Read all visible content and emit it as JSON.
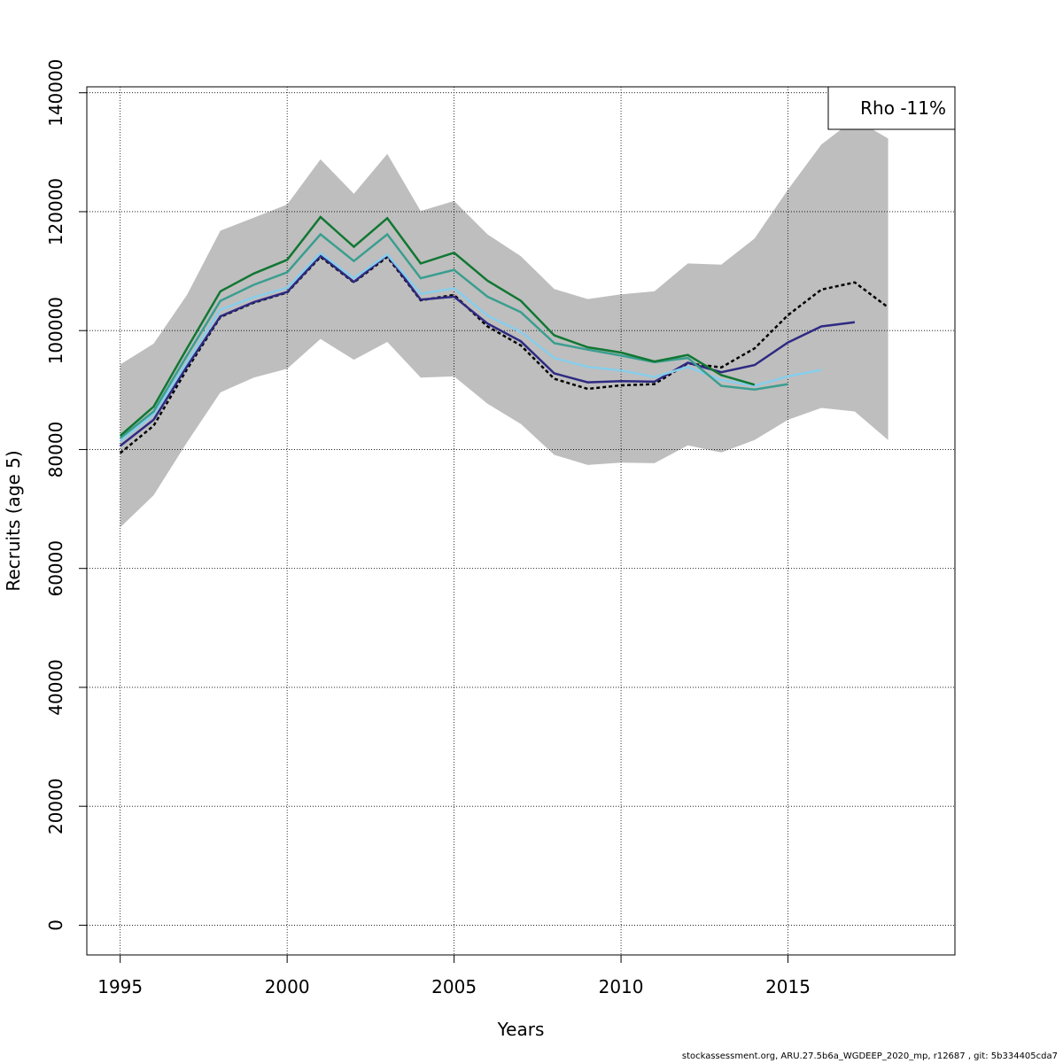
{
  "chart_data": {
    "type": "line",
    "xlabel": "Years",
    "ylabel": "Recruits (age 5)",
    "xlim": [
      1994,
      2020
    ],
    "ylim": [
      -5000,
      141000
    ],
    "x_ticks": [
      1995,
      2000,
      2005,
      2010,
      2015
    ],
    "y_ticks": [
      0,
      20000,
      40000,
      60000,
      80000,
      100000,
      120000,
      140000
    ],
    "grid": true,
    "legend": {
      "placement": "top-right",
      "text": "Rho -11%"
    },
    "band": {
      "color": "#bebebe",
      "x": [
        1995,
        1996,
        1997,
        1998,
        1999,
        2000,
        2001,
        2002,
        2003,
        2004,
        2005,
        2006,
        2007,
        2008,
        2009,
        2010,
        2011,
        2012,
        2013,
        2014,
        2015,
        2016,
        2017,
        2018
      ],
      "upper": [
        94300,
        97800,
        106000,
        116800,
        119000,
        121200,
        128800,
        123000,
        129700,
        120100,
        121800,
        116200,
        112500,
        107000,
        105300,
        106100,
        106600,
        111300,
        111100,
        115500,
        123700,
        131300,
        135600,
        132300
      ],
      "lower": [
        66900,
        72300,
        81200,
        89600,
        92100,
        93600,
        98600,
        95100,
        98100,
        92100,
        92300,
        87700,
        84300,
        79100,
        77400,
        77800,
        77700,
        80700,
        79500,
        81600,
        85000,
        87000,
        86400,
        81600
      ]
    },
    "series": [
      {
        "color": "#000000",
        "dashed": true,
        "x": [
          1995,
          1996,
          1997,
          1998,
          1999,
          2000,
          2001,
          2002,
          2003,
          2004,
          2005,
          2006,
          2007,
          2008,
          2009,
          2010,
          2011,
          2012,
          2013,
          2014,
          2015,
          2016,
          2017,
          2018
        ],
        "values": [
          79400,
          84000,
          93500,
          102300,
          104700,
          106400,
          112400,
          108100,
          112400,
          105100,
          106000,
          100700,
          97500,
          91900,
          90200,
          90800,
          91000,
          94500,
          93800,
          97000,
          102600,
          106900,
          108100,
          103900
        ]
      },
      {
        "color": "#2e2a82",
        "x": [
          1995,
          1996,
          1997,
          1998,
          1999,
          2000,
          2001,
          2002,
          2003,
          2004,
          2005,
          2006,
          2007,
          2008,
          2009,
          2010,
          2011,
          2012,
          2013,
          2014,
          2015,
          2016,
          2017
        ],
        "values": [
          80600,
          85000,
          94000,
          102400,
          104800,
          106500,
          112600,
          108200,
          112700,
          105200,
          105700,
          101200,
          98200,
          92800,
          91300,
          91500,
          91400,
          94600,
          93000,
          94200,
          98000,
          100700,
          101400
        ]
      },
      {
        "color": "#87ceeb",
        "x": [
          1995,
          1996,
          1997,
          1998,
          1999,
          2000,
          2001,
          2002,
          2003,
          2004,
          2005,
          2006,
          2007,
          2008,
          2009,
          2010,
          2011,
          2012,
          2013,
          2014,
          2015,
          2016
        ],
        "values": [
          81400,
          85900,
          94700,
          103500,
          105600,
          107200,
          113000,
          108800,
          112800,
          106200,
          107100,
          102500,
          99800,
          95400,
          93900,
          93300,
          92200,
          93900,
          91700,
          90700,
          92300,
          93400
        ]
      },
      {
        "color": "#3a9e8f",
        "x": [
          1995,
          1996,
          1997,
          1998,
          1999,
          2000,
          2001,
          2002,
          2003,
          2004,
          2005,
          2006,
          2007,
          2008,
          2009,
          2010,
          2011,
          2012,
          2013,
          2014,
          2015
        ],
        "values": [
          81900,
          86400,
          95800,
          105000,
          107700,
          109800,
          116200,
          111700,
          116200,
          108800,
          110200,
          105700,
          103100,
          97900,
          96800,
          95800,
          94700,
          95400,
          90700,
          90100,
          91000
        ]
      },
      {
        "color": "#117733",
        "x": [
          1995,
          1996,
          1997,
          1998,
          1999,
          2000,
          2001,
          2002,
          2003,
          2004,
          2005,
          2006,
          2007,
          2008,
          2009,
          2010,
          2011,
          2012,
          2013,
          2014
        ],
        "values": [
          82300,
          87200,
          97000,
          106600,
          109600,
          111900,
          119100,
          114100,
          118900,
          111300,
          113100,
          108400,
          105000,
          99200,
          97200,
          96300,
          94800,
          95900,
          92500,
          90900
        ]
      }
    ]
  },
  "footer": "stockassessment.org, ARU.27.5b6a_WGDEEP_2020_mp, r12687 , git: 5b334405cda7"
}
